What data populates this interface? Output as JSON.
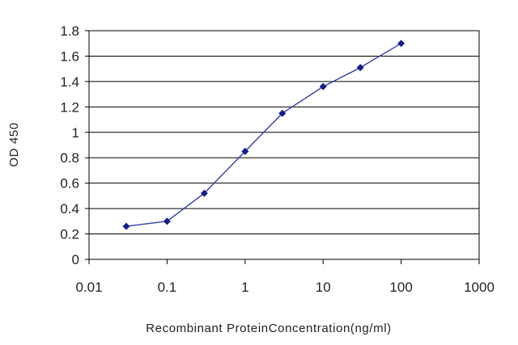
{
  "chart_data": {
    "type": "line",
    "xlabel": "Recombinant ProteinConcentration(ng/ml)",
    "ylabel": "OD 450",
    "xscale": "log",
    "xlim": [
      0.01,
      1000
    ],
    "ylim": [
      0,
      1.8
    ],
    "x_ticks": [
      "0.01",
      "0.1",
      "1",
      "10",
      "100",
      "1000"
    ],
    "y_ticks": [
      "0",
      "0.2",
      "0.4",
      "0.6",
      "0.8",
      "1",
      "1.2",
      "1.4",
      "1.6",
      "1.8"
    ],
    "grid": "horizontal",
    "line_color": "#3340a8",
    "marker_color": "#151c8c",
    "series": [
      {
        "x": [
          0.03,
          0.1,
          0.3,
          1,
          3,
          10,
          30,
          100
        ],
        "y": [
          0.26,
          0.3,
          0.52,
          0.85,
          1.15,
          1.36,
          1.51,
          1.7
        ]
      }
    ]
  }
}
